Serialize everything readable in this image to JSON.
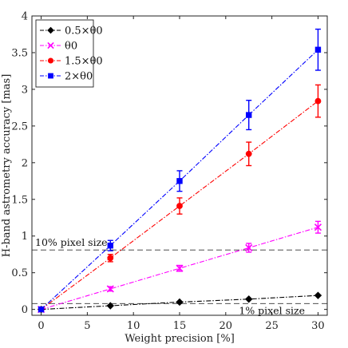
{
  "chart_data": {
    "type": "line",
    "xlabel": "Weight precision [%]",
    "ylabel": "H-band astrometry accuracy [mas]",
    "xlim": [
      -1,
      31
    ],
    "ylim": [
      -0.08,
      4
    ],
    "xticks": [
      0,
      5,
      10,
      15,
      20,
      25,
      30
    ],
    "yticks": [
      0,
      0.5,
      1,
      1.5,
      2,
      2.5,
      3,
      3.5,
      4
    ],
    "grid": false,
    "legend_position": "top-left",
    "x": [
      0,
      7.5,
      15,
      22.5,
      30
    ],
    "series": [
      {
        "name": "0.5×θ0",
        "color": "#000000",
        "marker": "diamond",
        "line_style": "dash-dot",
        "values": [
          0,
          0.05,
          0.1,
          0.14,
          0.19
        ],
        "errors": [
          0.01,
          0.01,
          0.015,
          0.02,
          0.02
        ]
      },
      {
        "name": "θ0",
        "color": "#ff00ff",
        "marker": "x",
        "line_style": "dash-dot",
        "values": [
          0,
          0.28,
          0.56,
          0.84,
          1.12
        ],
        "errors": [
          0.01,
          0.03,
          0.04,
          0.06,
          0.08
        ]
      },
      {
        "name": "1.5×θ0",
        "color": "#ff0000",
        "marker": "circle",
        "line_style": "dash-dot",
        "values": [
          0,
          0.7,
          1.41,
          2.12,
          2.84
        ],
        "errors": [
          0.01,
          0.05,
          0.11,
          0.16,
          0.22
        ]
      },
      {
        "name": "2×θ0",
        "color": "#0000ff",
        "marker": "square",
        "line_style": "dash-dot",
        "values": [
          0,
          0.87,
          1.75,
          2.65,
          3.54
        ],
        "errors": [
          0.01,
          0.07,
          0.14,
          0.2,
          0.28
        ]
      }
    ],
    "reference_lines": [
      {
        "label": "10% pixel size",
        "y": 0.81,
        "label_position": "above-left"
      },
      {
        "label": "1% pixel size",
        "y": 0.08,
        "label_position": "below-right"
      }
    ]
  }
}
